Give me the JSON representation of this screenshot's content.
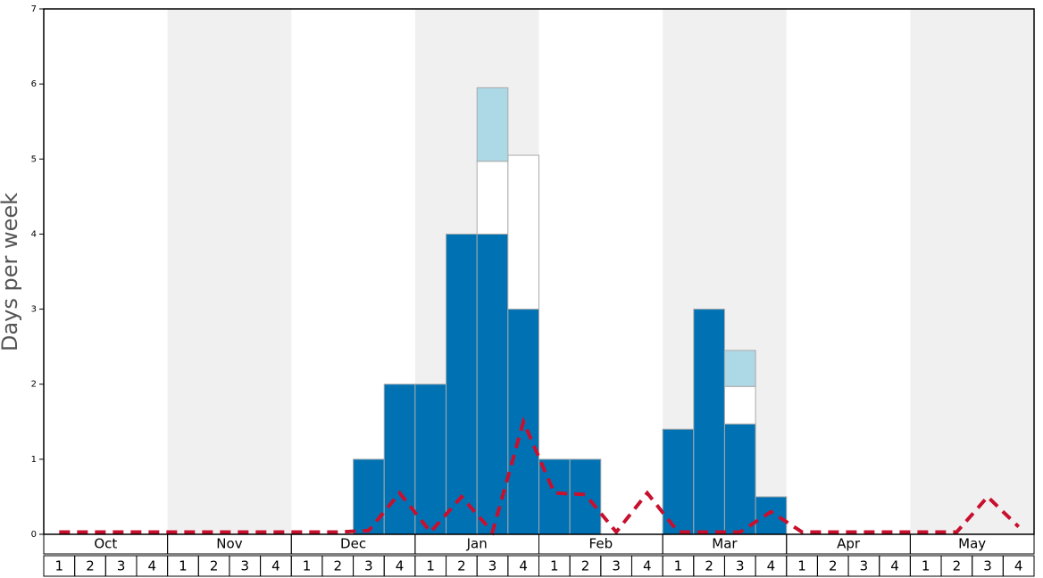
{
  "chart_data": {
    "type": "bar",
    "y_label": "Days per week",
    "months": [
      "Oct",
      "Nov",
      "Dec",
      "Jan",
      "Feb",
      "Mar",
      "Apr",
      "May"
    ],
    "weeks": [
      "1",
      "2",
      "3",
      "4"
    ],
    "ylim": [
      0,
      7
    ],
    "yticks": [
      0,
      1,
      2,
      3,
      4,
      5,
      6,
      7
    ],
    "series": [
      {
        "color": "#0072b4",
        "values": [
          0,
          0,
          0,
          0,
          0,
          0,
          0,
          0,
          0,
          0,
          1,
          2,
          2,
          4,
          4,
          3,
          1,
          1,
          0,
          0,
          1.4,
          3,
          1.47,
          0.5,
          0,
          0,
          0,
          0,
          0,
          0,
          0,
          0
        ]
      },
      {
        "color": "#ffffff",
        "values": [
          0,
          0,
          0,
          0,
          0,
          0,
          0,
          0,
          0,
          0,
          0,
          0,
          0,
          0,
          0.97,
          2.05,
          0,
          0,
          0,
          0,
          0,
          0,
          0.5,
          0,
          0,
          0,
          0,
          0,
          0,
          0,
          0,
          0
        ]
      },
      {
        "color": "#add8e6",
        "values": [
          0,
          0,
          0,
          0,
          0,
          0,
          0,
          0,
          0,
          0,
          0,
          0,
          0,
          0,
          0.98,
          0,
          0,
          0,
          0,
          0,
          0,
          0,
          0.48,
          0,
          0,
          0,
          0,
          0,
          0,
          0,
          0,
          0
        ]
      }
    ],
    "line": {
      "color": "#c8102e",
      "values": [
        0.03,
        0.03,
        0.03,
        0.03,
        0.03,
        0.03,
        0.03,
        0.03,
        0.03,
        0.03,
        0.05,
        0.55,
        0.03,
        0.5,
        0.03,
        1.5,
        0.55,
        0.53,
        0.03,
        0.55,
        0.03,
        0.03,
        0.03,
        0.3,
        0.03,
        0.03,
        0.03,
        0.03,
        0.03,
        0.03,
        0.5,
        0.1
      ]
    }
  }
}
